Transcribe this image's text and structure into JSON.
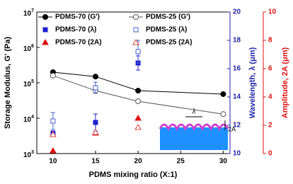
{
  "chart_data": {
    "type": "scatter",
    "xlabel": "PDMS mixing ratio (X:1)",
    "ylabel": "Storage Modulus, G' (Pa)",
    "y2label": "Wavelength, λ (μm)",
    "y3label": "Amplitude, 2A (μm)",
    "xlim": [
      8.1,
      30.8
    ],
    "xticks": [
      10,
      15,
      20,
      25,
      30
    ],
    "ylim": [
      1000,
      10000000
    ],
    "yscale": "log",
    "yticks": [
      {
        "value": 1000,
        "label": "10^3"
      },
      {
        "value": 10000,
        "label": "10^4"
      },
      {
        "value": 100000,
        "label": "10^5"
      },
      {
        "value": 1000000,
        "label": "10^6"
      },
      {
        "value": 10000000,
        "label": "10^7"
      }
    ],
    "y2lim": [
      10,
      20
    ],
    "y2ticks": [
      10,
      12,
      14,
      16,
      18,
      20
    ],
    "y2color": "#1f1fa8",
    "y3lim": [
      0,
      10
    ],
    "y3ticks": [
      0,
      2,
      4,
      6,
      8,
      10
    ],
    "y3color": "#e01010",
    "annotations": [
      "λ",
      "2A"
    ],
    "series": [
      {
        "name": "PDMS-70 (G')",
        "color": "#000000",
        "marker": "circle",
        "filled": true,
        "line": true,
        "axis": "y",
        "x": [
          10,
          15,
          20,
          30
        ],
        "values": [
          200000,
          150000,
          60000,
          48000
        ]
      },
      {
        "name": "PDMS-25 (G')",
        "color": "#555555",
        "marker": "circle",
        "filled": false,
        "line": true,
        "axis": "y",
        "x": [
          10,
          15,
          20,
          30
        ],
        "values": [
          160000,
          60000,
          30000,
          13000
        ]
      },
      {
        "name": "PDMS-70 (λ)",
        "color": "#1f1fd0",
        "marker": "square",
        "filled": true,
        "line": false,
        "axis": "y2",
        "x": [
          10,
          15,
          20
        ],
        "values": [
          11.4,
          12.2,
          16.4
        ],
        "errors": [
          0.2,
          0.6,
          0.5
        ]
      },
      {
        "name": "PDMS-25 (λ)",
        "color": "#4a5fd0",
        "marker": "square",
        "filled": false,
        "line": false,
        "axis": "y2",
        "x": [
          10,
          15,
          20
        ],
        "values": [
          12.3,
          14.65,
          17.2
        ],
        "errors": [
          0.6,
          0.4,
          0.8
        ]
      },
      {
        "name": "PDMS-70 (2A)",
        "color": "#e01010",
        "marker": "triangle",
        "filled": true,
        "line": false,
        "axis": "y3",
        "x": [
          10,
          15,
          20
        ],
        "values": [
          0.2,
          1.45,
          2.5
        ]
      },
      {
        "name": "PDMS-25 (2A)",
        "color": "#e04040",
        "marker": "triangle",
        "filled": false,
        "line": false,
        "axis": "y3",
        "x": [
          10,
          15,
          20
        ],
        "values": [
          1.35,
          1.5,
          1.85
        ]
      }
    ]
  }
}
